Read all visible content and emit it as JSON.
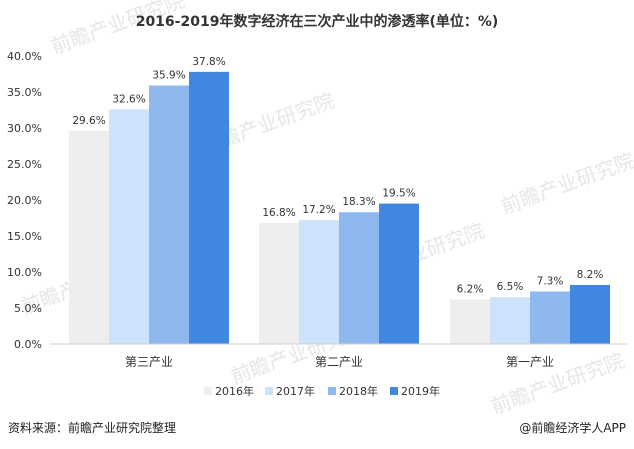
{
  "chart_data": {
    "type": "bar",
    "title": "2016-2019年数字经济在三次产业中的渗透率(单位：%)",
    "categories": [
      "第三产业",
      "第二产业",
      "第一产业"
    ],
    "series": [
      {
        "name": "2016年",
        "values": [
          29.6,
          16.8,
          6.2
        ],
        "labels": [
          "29.6%",
          "16.8%",
          "6.2%"
        ],
        "color": "#eeeeee"
      },
      {
        "name": "2017年",
        "values": [
          32.6,
          17.2,
          6.5
        ],
        "labels": [
          "32.6%",
          "17.2%",
          "6.5%"
        ],
        "color": "#cce3fb"
      },
      {
        "name": "2018年",
        "values": [
          35.9,
          18.3,
          7.3
        ],
        "labels": [
          "35.9%",
          "18.3%",
          "7.3%"
        ],
        "color": "#8fb8ee"
      },
      {
        "name": "2019年",
        "values": [
          37.8,
          19.5,
          8.2
        ],
        "labels": [
          "37.8%",
          "19.5%",
          "8.2%"
        ],
        "color": "#3f87e0"
      }
    ],
    "yticks": [
      "0.0%",
      "5.0%",
      "10.0%",
      "15.0%",
      "20.0%",
      "25.0%",
      "30.0%",
      "35.0%",
      "40.0%"
    ],
    "ylim": [
      0,
      40
    ],
    "legend_position": "bottom",
    "grid": false
  },
  "source_note": "资料来源：前瞻产业研究院整理",
  "credit": "@前瞻经济学人APP",
  "watermark": "前瞻产业研究院"
}
